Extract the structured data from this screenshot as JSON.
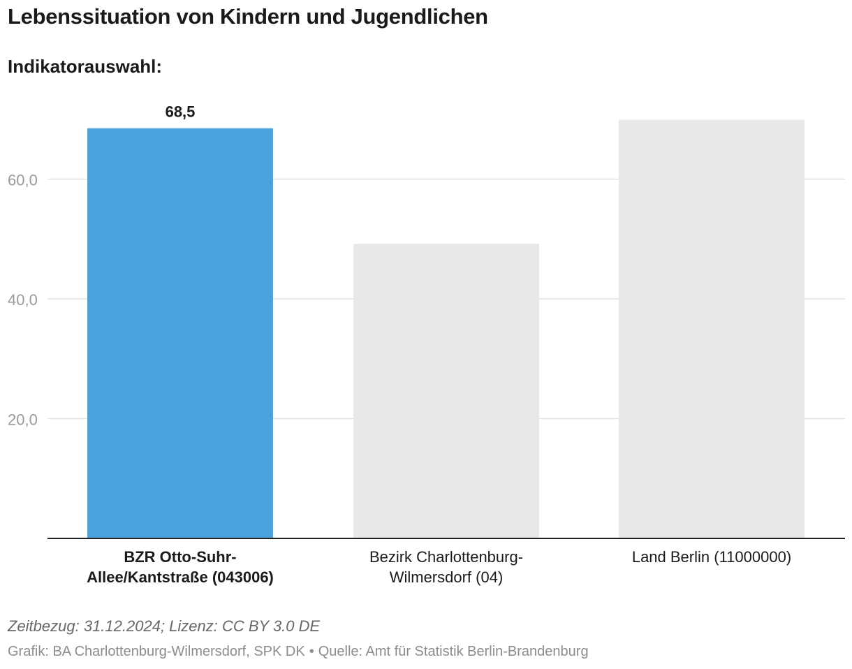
{
  "title": "Lebenssituation von Kindern und Jugendlichen",
  "subtitle": "Indikatorauswahl:",
  "chart_data": {
    "type": "bar",
    "categories": [
      [
        "BZR Otto-Suhr-",
        "Allee/Kantstraße (043006)"
      ],
      [
        "Bezirk Charlottenburg-",
        "Wilmersdorf (04)"
      ],
      [
        "Land Berlin (11000000)"
      ]
    ],
    "values": [
      68.5,
      49.2,
      69.9
    ],
    "highlight_index": 0,
    "data_labels": [
      "68,5",
      "",
      ""
    ],
    "ylim": [
      0,
      75
    ],
    "yticks": [
      20,
      40,
      60
    ],
    "ytick_labels": [
      "20,0",
      "40,0",
      "60,0"
    ],
    "colors": {
      "highlight": "#4ba3dd",
      "default": "#e8e8e8",
      "grid": "#e3e3e3",
      "axis": "#222222",
      "tick_text": "#9a9a9a"
    }
  },
  "footer": {
    "time_license": "Zeitbezug: 31.12.2024; Lizenz: CC BY 3.0 DE",
    "graphic": "Grafik: BA Charlottenburg-Wilmersdorf, SPK DK",
    "separator": "•",
    "source": "Quelle: Amt für Statistik Berlin-Brandenburg"
  }
}
